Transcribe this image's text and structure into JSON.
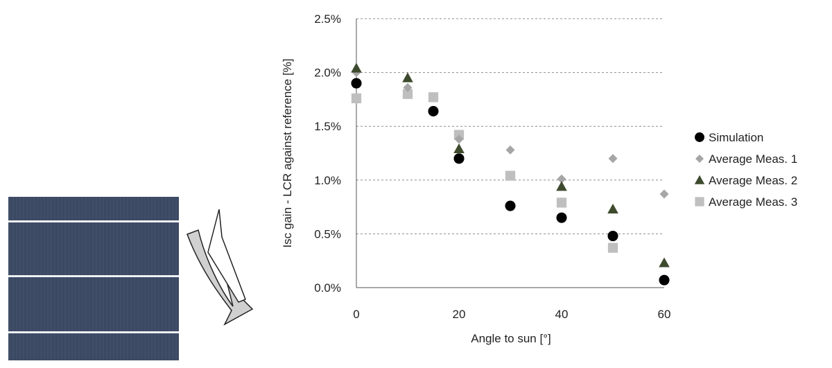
{
  "chart_data": {
    "type": "scatter",
    "title": "",
    "xlabel": "Angle to sun [°]",
    "ylabel": "Isc  gain - LCR against reference [%]",
    "xlim": [
      0,
      60
    ],
    "ylim": [
      0,
      2.5
    ],
    "x_ticks": [
      "0",
      "20",
      "40",
      "60"
    ],
    "y_ticks": [
      "0.0%",
      "0.5%",
      "1.0%",
      "1.5%",
      "2.0%",
      "2.5%"
    ],
    "grid": "horizontal dotted",
    "legend_position": "right",
    "series": [
      {
        "name": "Simulation",
        "marker": "circle",
        "color": "#000000",
        "x": [
          0,
          15,
          20,
          30,
          40,
          50,
          60
        ],
        "y": [
          1.9,
          1.64,
          1.2,
          0.76,
          0.65,
          0.48,
          0.07
        ]
      },
      {
        "name": "Average Meas. 1",
        "marker": "diamond",
        "color": "#a6a6a6",
        "x": [
          0,
          10,
          20,
          30,
          40,
          50,
          60
        ],
        "y": [
          2.0,
          1.86,
          1.38,
          1.28,
          1.01,
          1.2,
          0.87
        ]
      },
      {
        "name": "Average Meas. 2",
        "marker": "triangle",
        "color": "#3d4a2d",
        "x": [
          0,
          10,
          20,
          40,
          50,
          60
        ],
        "y": [
          2.04,
          1.95,
          1.29,
          0.94,
          0.73,
          0.23
        ]
      },
      {
        "name": "Average Meas. 3",
        "marker": "square",
        "color": "#bfbfbf",
        "x": [
          0,
          10,
          15,
          20,
          30,
          40,
          50
        ],
        "y": [
          1.76,
          1.8,
          1.77,
          1.42,
          1.04,
          0.79,
          0.37
        ]
      }
    ]
  }
}
